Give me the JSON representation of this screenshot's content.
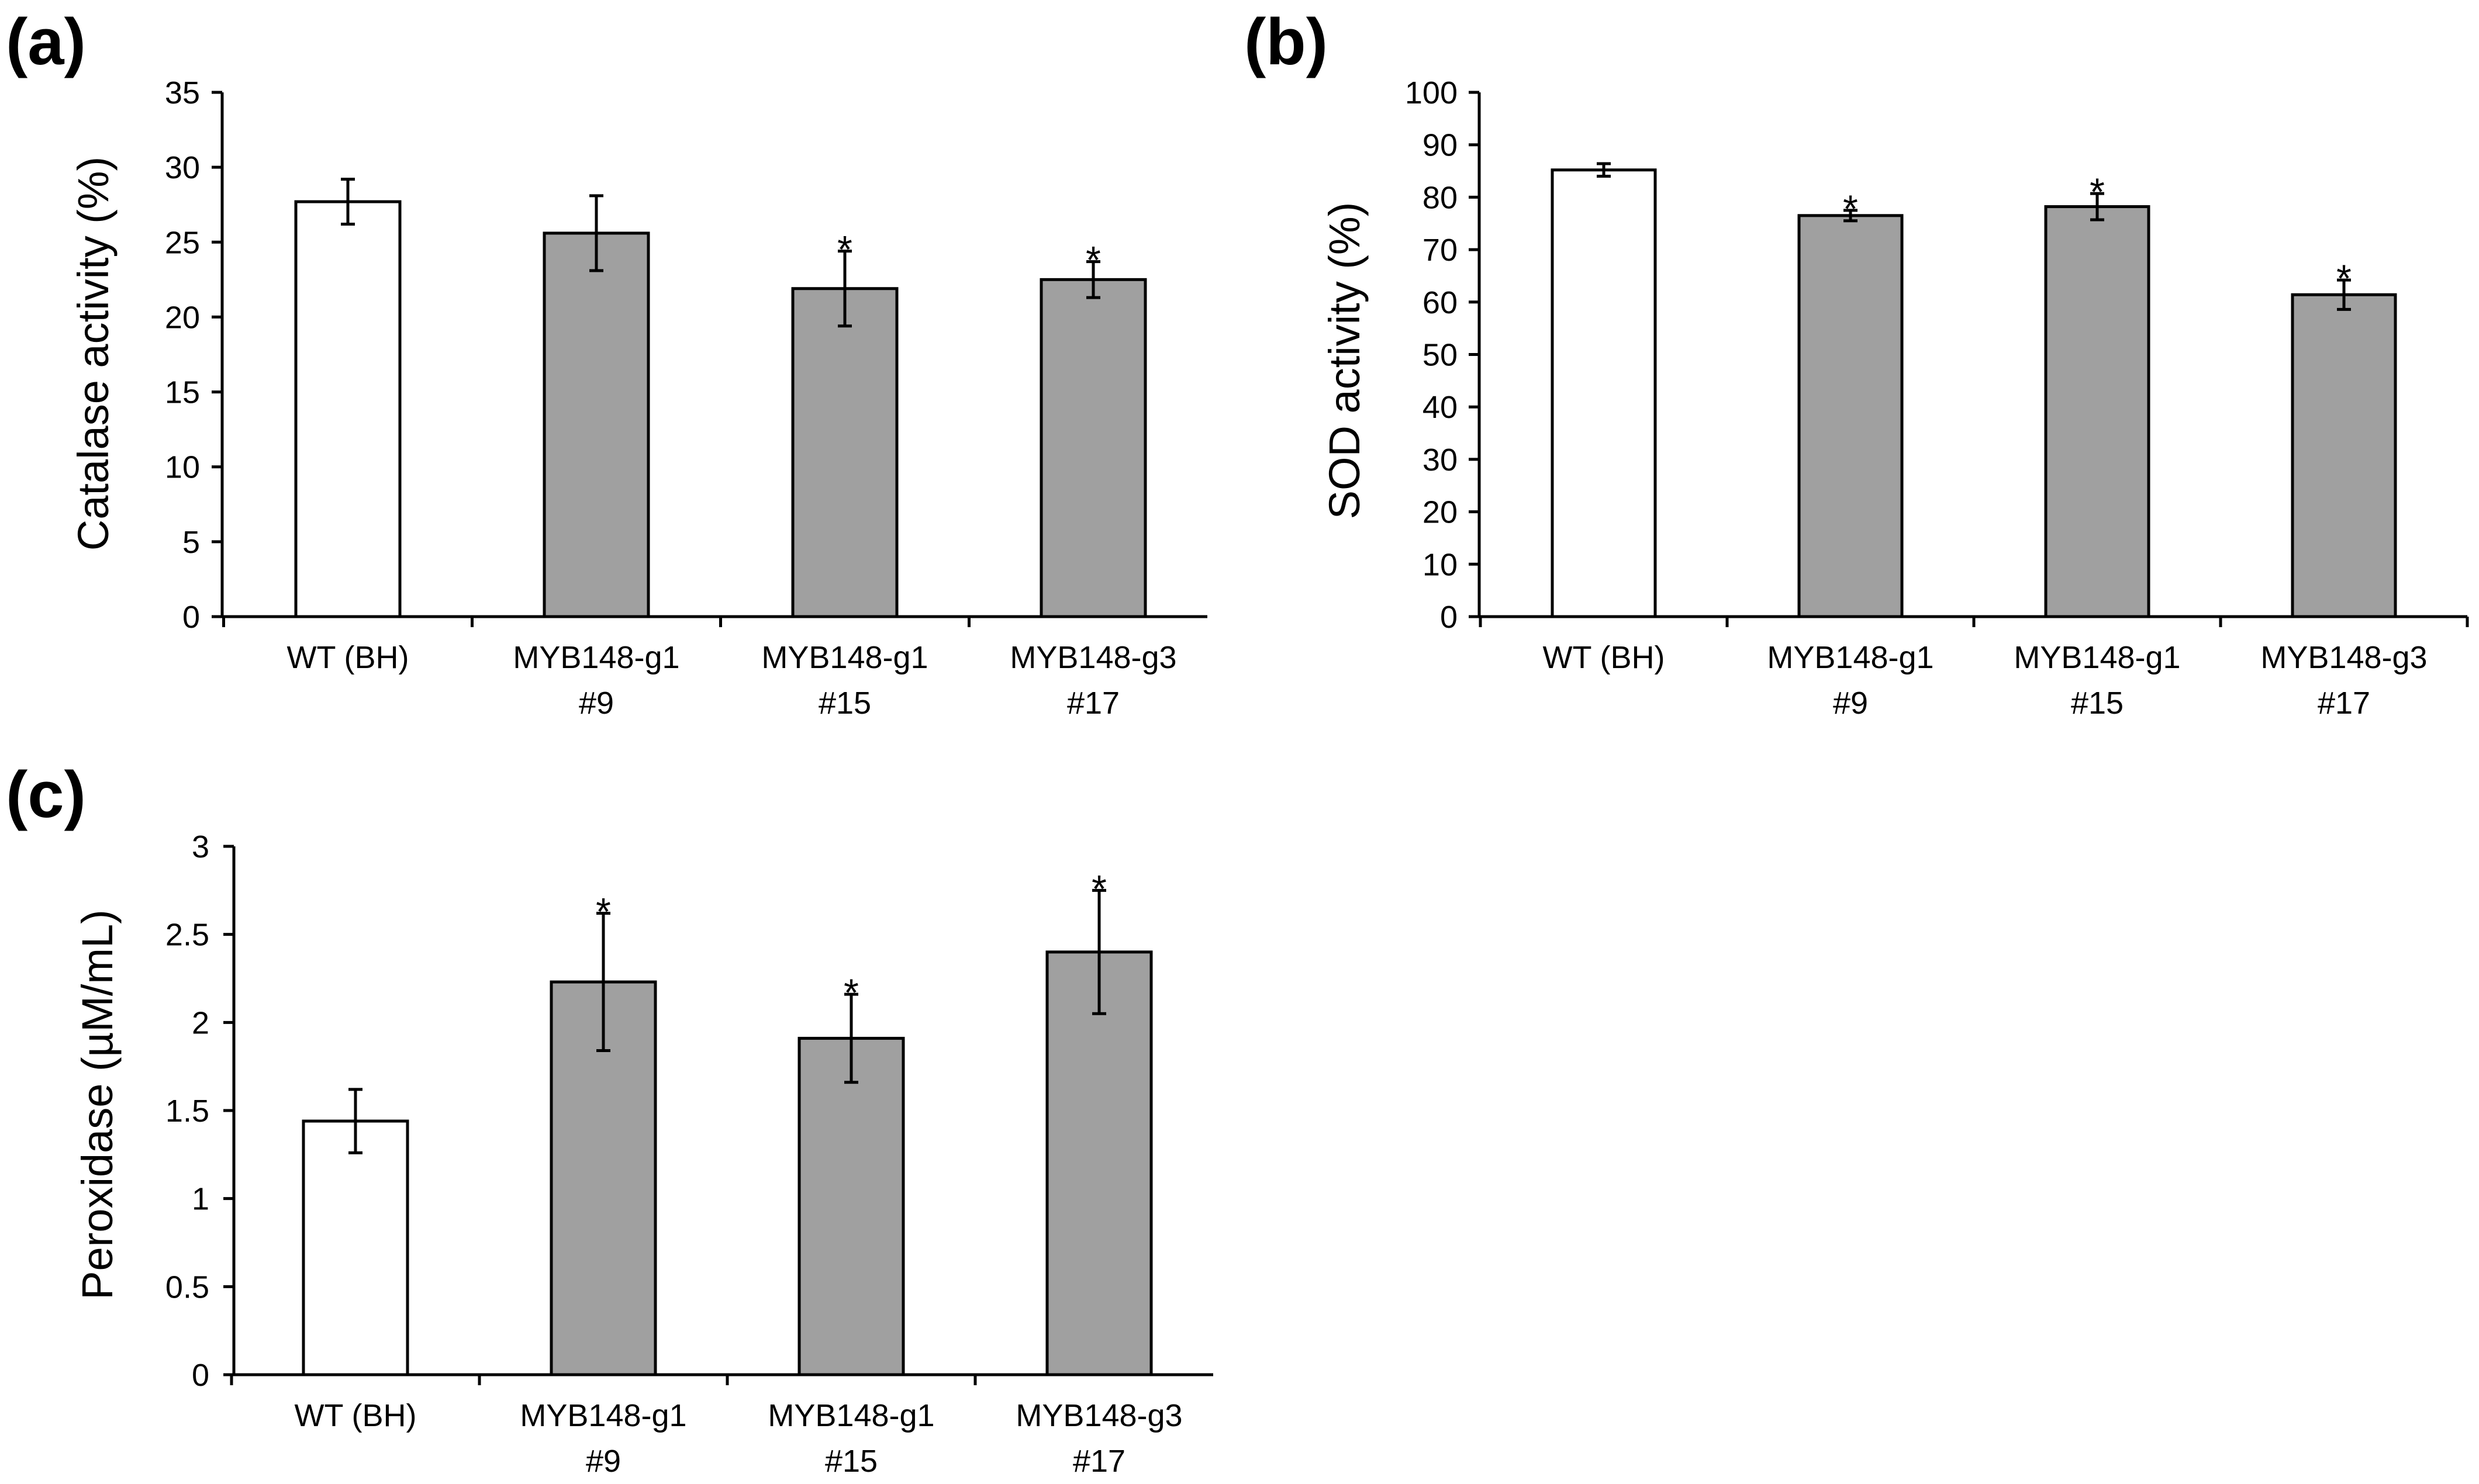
{
  "chart_data": [
    {
      "panel": "(a)",
      "type": "bar",
      "ylabel": "Catalase activity (%)",
      "ylim": [
        0,
        35
      ],
      "ytick_step": 5,
      "categories": [
        [
          "WT (BH)"
        ],
        [
          "MYB148-g1",
          "#9"
        ],
        [
          "MYB148-g1",
          "#15"
        ],
        [
          "MYB148-g3",
          "#17"
        ]
      ],
      "values": [
        27.7,
        25.6,
        21.9,
        22.5
      ],
      "errors": [
        1.5,
        2.5,
        2.5,
        1.2
      ],
      "significant": [
        false,
        false,
        true,
        true
      ],
      "bar_colors": [
        "#ffffff",
        "#a0a0a0",
        "#a0a0a0",
        "#a0a0a0"
      ],
      "sig_marker": "*"
    },
    {
      "panel": "(b)",
      "type": "bar",
      "ylabel": "SOD activity (%)",
      "ylim": [
        0,
        100
      ],
      "ytick_step": 10,
      "categories": [
        [
          "WT (BH)"
        ],
        [
          "MYB148-g1",
          "#9"
        ],
        [
          "MYB148-g1",
          "#15"
        ],
        [
          "MYB148-g3",
          "#17"
        ]
      ],
      "values": [
        85.2,
        76.5,
        78.2,
        61.4
      ],
      "errors": [
        1.2,
        1.0,
        2.5,
        2.8
      ],
      "significant": [
        false,
        true,
        true,
        true
      ],
      "bar_colors": [
        "#ffffff",
        "#a0a0a0",
        "#a0a0a0",
        "#a0a0a0"
      ],
      "sig_marker": "*"
    },
    {
      "panel": "(c)",
      "type": "bar",
      "ylabel": "Peroxidase (µM/mL)",
      "ylim": [
        0,
        3
      ],
      "ytick_step": 0.5,
      "categories": [
        [
          "WT (BH)"
        ],
        [
          "MYB148-g1",
          "#9"
        ],
        [
          "MYB148-g1",
          "#15"
        ],
        [
          "MYB148-g3",
          "#17"
        ]
      ],
      "values": [
        1.44,
        2.23,
        1.91,
        2.4
      ],
      "errors": [
        0.18,
        0.39,
        0.25,
        0.35
      ],
      "significant": [
        false,
        true,
        true,
        true
      ],
      "bar_colors": [
        "#ffffff",
        "#a0a0a0",
        "#a0a0a0",
        "#a0a0a0"
      ],
      "sig_marker": "*"
    }
  ]
}
